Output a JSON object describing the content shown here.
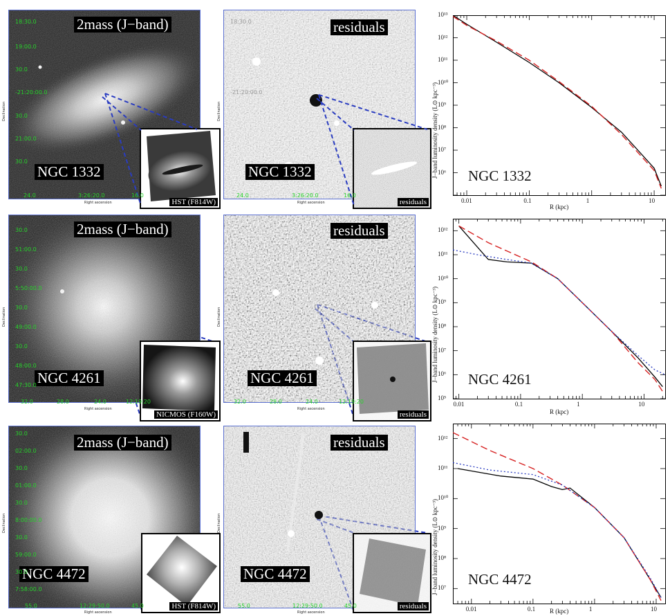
{
  "rows": [
    {
      "galaxy": "NGC 1332",
      "image_label": "2mass (J−band)",
      "residual_label": "residuals",
      "inset_image_label": "HST (F814W)",
      "inset_residual_label": "residuals",
      "dec_ticks": [
        "18:30.0",
        "19:00.0",
        "30.0",
        "-21:20:00.0",
        "30.0",
        "21:00.0",
        "30.0"
      ],
      "ra_ticks": [
        "24.0",
        "3:26:20.0",
        "16.0"
      ],
      "xlabel": "Right ascension",
      "ylabel": "Declination",
      "profile_ylabel": "J−band luminosity density (L⊙ kpc⁻³)",
      "profile_xlabel": "R (kpc)",
      "profile_yticks": [
        "10¹³",
        "10¹²",
        "10¹¹",
        "10¹⁰",
        "10⁹",
        "10⁸",
        "10⁷",
        "10⁶"
      ],
      "profile_xticks": [
        "0.01",
        "0.1",
        "1",
        "10"
      ]
    },
    {
      "galaxy": "NGC 4261",
      "image_label": "2mass (J−band)",
      "residual_label": "residuals",
      "inset_image_label": "NICMOS (F160W)",
      "inset_residual_label": "residuals",
      "dec_ticks": [
        "30.0",
        "51:00.0",
        "30.0",
        "5:50:00.0",
        "30.0",
        "49:00.0",
        "30.0",
        "48:00.0",
        "47:30.0"
      ],
      "ra_ticks": [
        "32.0",
        "28.0",
        "24.0",
        "12:19:20"
      ],
      "xlabel": "Right ascension",
      "ylabel": "Declination",
      "profile_ylabel": "J−band luminosity density (L⊙ kpc⁻³)",
      "profile_xlabel": "R (kpc)",
      "profile_yticks": [
        "10¹²",
        "10¹¹",
        "10¹⁰",
        "10⁹",
        "10⁸",
        "10⁷",
        "10⁶",
        "10⁵"
      ],
      "profile_xticks": [
        "0.01",
        "0.1",
        "1",
        "10"
      ]
    },
    {
      "galaxy": "NGC 4472",
      "image_label": "2mass (J−band)",
      "residual_label": "residuals",
      "inset_image_label": "HST (F814W)",
      "inset_residual_label": "residuals",
      "dec_ticks": [
        "30.0",
        "02:00.0",
        "30.0",
        "01:00.0",
        "30.0",
        "8:00:00.0",
        "30.0",
        "59:00.0",
        "30.0",
        "7:58:00.0"
      ],
      "ra_ticks": [
        "55.0",
        "12:29:50.0",
        "45.0"
      ],
      "xlabel": "Right ascension",
      "ylabel": "Declination",
      "profile_ylabel": "J−band luminosity density (L⊙ kpc⁻³)",
      "profile_xlabel": "R (kpc)",
      "profile_yticks": [
        "10¹²",
        "10¹¹",
        "10¹⁰",
        "10⁹",
        "10⁸",
        "10⁷"
      ],
      "profile_xticks": [
        "0.01",
        "0.1",
        "1",
        "10"
      ]
    }
  ],
  "colors": {
    "model": "#d62020",
    "data": "#000000",
    "dotted": "#2a3cc0",
    "tick_green": "#26d32a",
    "guide": "#2a3cc0"
  },
  "chart_data": [
    {
      "type": "line",
      "log_x": true,
      "log_y": true,
      "xlim": [
        0.006,
        15
      ],
      "ylim": [
        5,
        13
      ],
      "series": [
        {
          "x": [
            0.006,
            0.01,
            0.03,
            0.1,
            0.3,
            1,
            3,
            10,
            13
          ],
          "y": [
            13.0,
            12.6,
            11.8,
            10.9,
            10.0,
            8.9,
            7.8,
            6.2,
            5.4
          ]
        },
        {
          "x": [
            0.006,
            0.01,
            0.03,
            0.1,
            0.3,
            1,
            3,
            10,
            13
          ],
          "y": [
            12.95,
            12.55,
            11.85,
            11.0,
            10.05,
            8.95,
            7.7,
            6.1,
            5.3
          ]
        }
      ]
    },
    {
      "type": "line",
      "log_x": true,
      "log_y": true,
      "xlim": [
        0.008,
        22
      ],
      "ylim": [
        5,
        12.5
      ],
      "series": [
        {
          "x": [
            0.01,
            0.03,
            0.06,
            0.15,
            0.4,
            1,
            3,
            8,
            15,
            20
          ],
          "y": [
            12.2,
            10.8,
            10.7,
            10.65,
            10.0,
            9.0,
            7.8,
            6.7,
            5.9,
            5.5
          ]
        },
        {
          "x": [
            0.01,
            0.03,
            0.15,
            0.4,
            1,
            3,
            8,
            15,
            20
          ],
          "y": [
            12.2,
            11.5,
            10.7,
            10.0,
            9.0,
            7.8,
            6.5,
            5.8,
            5.3
          ]
        },
        {
          "x": [
            0.008,
            0.02,
            0.06,
            0.15,
            0.4,
            1,
            3,
            8,
            15,
            22
          ],
          "y": [
            11.2,
            11.0,
            10.8,
            10.65,
            10.0,
            9.0,
            7.8,
            6.8,
            6.2,
            6.0
          ]
        }
      ]
    },
    {
      "type": "line",
      "log_x": true,
      "log_y": true,
      "xlim": [
        0.005,
        14
      ],
      "ylim": [
        6.5,
        12.5
      ],
      "series": [
        {
          "x": [
            0.006,
            0.03,
            0.1,
            0.2,
            0.3,
            0.4,
            1,
            3,
            8,
            12
          ],
          "y": [
            11.0,
            10.75,
            10.65,
            10.4,
            10.3,
            10.35,
            9.7,
            8.7,
            7.3,
            6.7
          ]
        },
        {
          "x": [
            0.005,
            0.02,
            0.1,
            0.3,
            1,
            3,
            8,
            12
          ],
          "y": [
            12.2,
            11.6,
            11.0,
            10.45,
            9.7,
            8.7,
            7.3,
            6.6
          ]
        },
        {
          "x": [
            0.005,
            0.02,
            0.1,
            0.3,
            1,
            3,
            8,
            12
          ],
          "y": [
            11.2,
            10.95,
            10.8,
            10.45,
            9.7,
            8.7,
            7.35,
            6.7
          ]
        }
      ]
    }
  ]
}
